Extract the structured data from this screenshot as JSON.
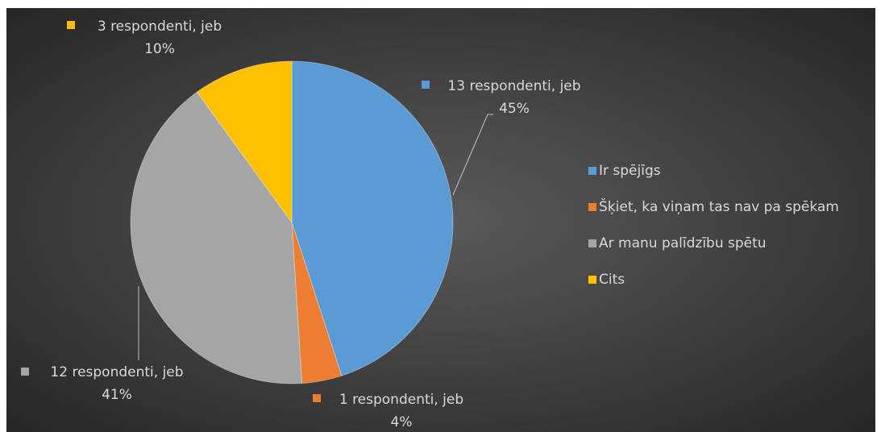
{
  "chart_data": {
    "type": "pie",
    "categories": [
      "Ir spējīgs",
      "Šķiet, ka viņam tas nav pa spēkam",
      "Ar manu palīdzību spētu",
      "Cits"
    ],
    "values": [
      45,
      4,
      41,
      10
    ],
    "value_labels": [
      "13 respondenti, jeb\n45%",
      "1 respondenti, jeb\n4%",
      "12 respondenti, jeb\n41%",
      "3 respondenti, jeb\n10%"
    ],
    "colors": [
      "#5b9bd5",
      "#ed7d31",
      "#a5a5a5",
      "#ffc000"
    ],
    "legend": "right"
  }
}
